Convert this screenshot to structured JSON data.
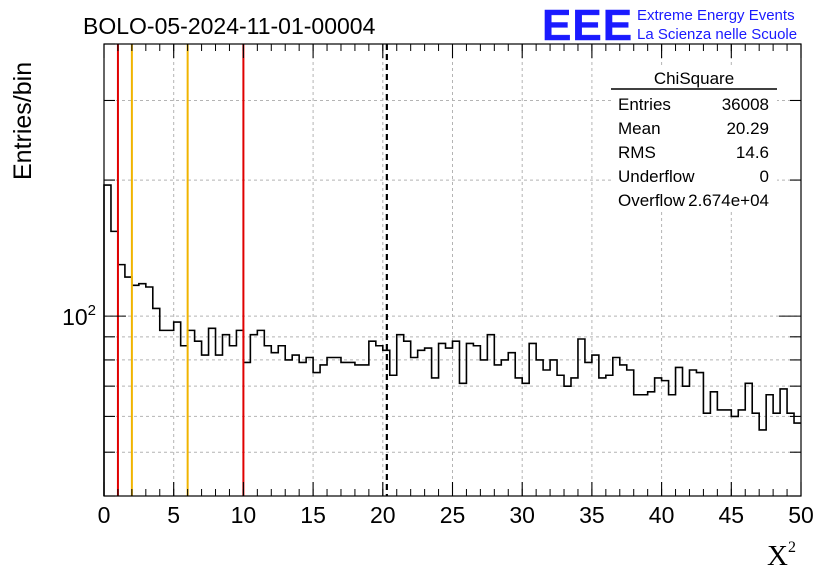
{
  "header": {
    "title": "BOLO-05-2024-11-01-00004",
    "logo_text": "EEE",
    "logo_line1": "Extreme Energy Events",
    "logo_line2": "La Scienza nelle Scuole",
    "logo_color": "#1a1aff"
  },
  "stats_box": {
    "title": "ChiSquare",
    "rows": [
      {
        "label": "Entries",
        "value": "36008"
      },
      {
        "label": "Mean",
        "value": "20.29"
      },
      {
        "label": "RMS",
        "value": "14.6"
      },
      {
        "label": "Underflow",
        "value": "0"
      },
      {
        "label": "Overflow",
        "value": "2.674e+04"
      }
    ]
  },
  "chart_data": {
    "type": "histogram",
    "title": "BOLO-05-2024-11-01-00004",
    "xlabel": "X",
    "xlabel_superscript": "2",
    "ylabel": "Entries/bin",
    "xlim": [
      0,
      50
    ],
    "ylim": [
      40,
      400
    ],
    "yscale": "log",
    "grid": true,
    "bin_width": 0.5,
    "x_ticks": [
      "0",
      "5",
      "10",
      "15",
      "20",
      "25",
      "30",
      "35",
      "40",
      "45",
      "50"
    ],
    "y_tick_labels": [
      {
        "value": 100,
        "label": "10"
      }
    ],
    "y_tick_label_exponent": "2",
    "values": [
      195,
      154,
      130,
      122,
      117,
      118,
      116,
      104,
      93,
      93,
      97,
      86,
      93,
      88,
      82,
      94,
      82,
      91,
      86,
      93,
      79,
      91,
      93,
      86,
      83,
      86,
      80,
      82,
      79,
      81,
      75,
      78,
      81,
      81,
      79,
      79,
      78,
      78,
      88,
      86,
      84,
      74,
      91,
      88,
      81,
      84,
      85,
      73,
      87,
      85,
      88,
      71,
      87,
      86,
      80,
      91,
      78,
      80,
      83,
      73,
      71,
      87,
      80,
      76,
      80,
      74,
      70,
      73,
      89,
      79,
      82,
      73,
      74,
      81,
      78,
      76,
      67,
      67,
      68,
      73,
      72,
      67,
      77,
      70,
      76,
      75,
      61,
      68,
      62,
      62,
      60,
      62,
      71,
      61,
      56,
      67,
      61,
      69,
      61,
      58
    ],
    "vlines": [
      {
        "x": 1,
        "color": "#e00000",
        "style": "solid"
      },
      {
        "x": 2,
        "color": "#f0b400",
        "style": "solid"
      },
      {
        "x": 6,
        "color": "#f0b400",
        "style": "solid"
      },
      {
        "x": 10,
        "color": "#e00000",
        "style": "solid"
      },
      {
        "x": 20.29,
        "color": "#000000",
        "style": "dashed"
      }
    ]
  }
}
